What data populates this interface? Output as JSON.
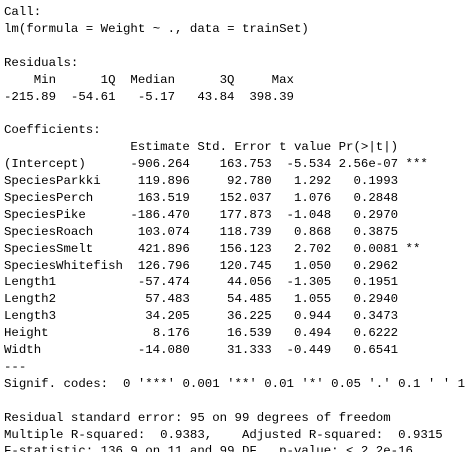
{
  "call": {
    "title": "Call:",
    "text": "lm(formula = Weight ~ ., data = trainSet)"
  },
  "residuals": {
    "title": "Residuals:",
    "headers": [
      "Min",
      "1Q",
      "Median",
      "3Q",
      "Max"
    ],
    "values": [
      "-215.89",
      "-54.61",
      "-5.17",
      "43.84",
      "398.39"
    ]
  },
  "coefficients": {
    "title": "Coefficients:",
    "headers": [
      "Estimate",
      "Std. Error",
      "t value",
      "Pr(>|t|)"
    ],
    "rows": [
      [
        "(Intercept)",
        "-906.264",
        "163.753",
        "-5.534",
        "2.56e-07",
        "***"
      ],
      [
        "SpeciesParkki",
        "119.896",
        "92.780",
        "1.292",
        "0.1993"
      ],
      [
        "SpeciesPerch",
        "163.519",
        "152.037",
        "1.076",
        "0.2848"
      ],
      [
        "SpeciesPike",
        "-186.470",
        "177.873",
        "-1.048",
        "0.2970"
      ],
      [
        "SpeciesRoach",
        "103.074",
        "118.739",
        "0.868",
        "0.3875"
      ],
      [
        "SpeciesSmelt",
        "421.896",
        "156.123",
        "2.702",
        "0.0081",
        "**"
      ],
      [
        "SpeciesWhitefish",
        "126.796",
        "120.745",
        "1.050",
        "0.2962"
      ],
      [
        "Length1",
        "-57.474",
        "44.056",
        "-1.305",
        "0.1951"
      ],
      [
        "Length2",
        "57.483",
        "54.485",
        "1.055",
        "0.2940"
      ],
      [
        "Length3",
        "34.205",
        "36.225",
        "0.944",
        "0.3473"
      ],
      [
        "Height",
        "8.176",
        "16.539",
        "0.494",
        "0.6222"
      ],
      [
        "Width",
        "-14.080",
        "31.333",
        "-0.449",
        "0.6541"
      ]
    ]
  },
  "separator": "---",
  "signif_codes": "Signif. codes:  0 '***' 0.001 '**' 0.01 '*' 0.05 '.' 0.1 ' ' 1",
  "footer": [
    "Residual standard error: 95 on 99 degrees of freedom",
    "Multiple R-squared:  0.9383,    Adjusted R-squared:  0.9315",
    "F-statistic: 136.9 on 11 and 99 DF,  p-value: < 2.2e-16"
  ]
}
